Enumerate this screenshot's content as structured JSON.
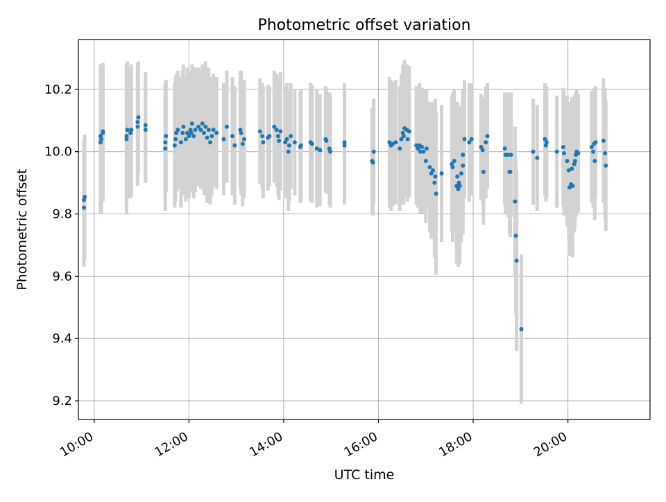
{
  "chart_data": {
    "type": "scatter",
    "title": "Photometric offset variation",
    "xlabel": "UTC time",
    "ylabel": "Photometric offset",
    "x_ticks": [
      "10:00",
      "12:00",
      "14:00",
      "16:00",
      "18:00",
      "20:00"
    ],
    "y_ticks": [
      "9.2",
      "9.4",
      "9.6",
      "9.8",
      "10.0",
      "10.2"
    ],
    "xlim": [
      "09:40",
      "21:44"
    ],
    "ylim": [
      9.14,
      10.36
    ],
    "grid": true,
    "colors": {
      "marker": "#1f77b4",
      "errorbar": "#d3d3d3",
      "grid": "#b0b0b0"
    },
    "points": [
      {
        "x": "09:47",
        "y": 9.82,
        "err": 0.19
      },
      {
        "x": "09:47",
        "y": 9.845,
        "err": 0.19
      },
      {
        "x": "09:48",
        "y": 9.855,
        "err": 0.2
      },
      {
        "x": "10:08",
        "y": 10.03,
        "err": 0.23
      },
      {
        "x": "10:08",
        "y": 10.05,
        "err": 0.23
      },
      {
        "x": "10:09",
        "y": 10.04,
        "err": 0.24
      },
      {
        "x": "10:11",
        "y": 10.06,
        "err": 0.22
      },
      {
        "x": "10:11",
        "y": 10.065,
        "err": 0.22
      },
      {
        "x": "10:41",
        "y": 10.04,
        "err": 0.24
      },
      {
        "x": "10:41",
        "y": 10.05,
        "err": 0.23
      },
      {
        "x": "10:42",
        "y": 10.07,
        "err": 0.22
      },
      {
        "x": "10:46",
        "y": 10.06,
        "err": 0.21
      },
      {
        "x": "10:47",
        "y": 10.07,
        "err": 0.21
      },
      {
        "x": "10:55",
        "y": 10.08,
        "err": 0.19
      },
      {
        "x": "10:55",
        "y": 10.095,
        "err": 0.19
      },
      {
        "x": "10:56",
        "y": 10.11,
        "err": 0.18
      },
      {
        "x": "11:05",
        "y": 10.07,
        "err": 0.17
      },
      {
        "x": "11:05",
        "y": 10.085,
        "err": 0.17
      },
      {
        "x": "11:30",
        "y": 10.01,
        "err": 0.2
      },
      {
        "x": "11:30",
        "y": 10.03,
        "err": 0.19
      },
      {
        "x": "11:31",
        "y": 10.05,
        "err": 0.18
      },
      {
        "x": "11:42",
        "y": 10.02,
        "err": 0.2
      },
      {
        "x": "11:43",
        "y": 10.04,
        "err": 0.2
      },
      {
        "x": "11:44",
        "y": 10.06,
        "err": 0.19
      },
      {
        "x": "11:46",
        "y": 10.07,
        "err": 0.19
      },
      {
        "x": "11:50",
        "y": 10.03,
        "err": 0.21
      },
      {
        "x": "11:52",
        "y": 10.06,
        "err": 0.2
      },
      {
        "x": "11:53",
        "y": 10.08,
        "err": 0.2
      },
      {
        "x": "11:56",
        "y": 10.04,
        "err": 0.2
      },
      {
        "x": "11:58",
        "y": 10.06,
        "err": 0.21
      },
      {
        "x": "12:00",
        "y": 10.05,
        "err": 0.2
      },
      {
        "x": "12:02",
        "y": 10.07,
        "err": 0.19
      },
      {
        "x": "12:03",
        "y": 10.06,
        "err": 0.19
      },
      {
        "x": "12:04",
        "y": 10.09,
        "err": 0.19
      },
      {
        "x": "12:06",
        "y": 10.05,
        "err": 0.2
      },
      {
        "x": "12:08",
        "y": 10.07,
        "err": 0.2
      },
      {
        "x": "12:12",
        "y": 10.08,
        "err": 0.19
      },
      {
        "x": "12:15",
        "y": 10.07,
        "err": 0.19
      },
      {
        "x": "12:17",
        "y": 10.09,
        "err": 0.19
      },
      {
        "x": "12:19",
        "y": 10.06,
        "err": 0.2
      },
      {
        "x": "12:21",
        "y": 10.08,
        "err": 0.21
      },
      {
        "x": "12:23",
        "y": 10.045,
        "err": 0.21
      },
      {
        "x": "12:25",
        "y": 10.07,
        "err": 0.2
      },
      {
        "x": "12:27",
        "y": 10.03,
        "err": 0.2
      },
      {
        "x": "12:29",
        "y": 10.05,
        "err": 0.19
      },
      {
        "x": "12:31",
        "y": 10.07,
        "err": 0.18
      },
      {
        "x": "12:35",
        "y": 10.06,
        "err": 0.18
      },
      {
        "x": "12:44",
        "y": 10.04,
        "err": 0.18
      },
      {
        "x": "12:48",
        "y": 10.08,
        "err": 0.18
      },
      {
        "x": "12:55",
        "y": 10.05,
        "err": 0.19
      },
      {
        "x": "12:58",
        "y": 10.02,
        "err": 0.19
      },
      {
        "x": "13:05",
        "y": 10.07,
        "err": 0.19
      },
      {
        "x": "13:06",
        "y": 10.06,
        "err": 0.2
      },
      {
        "x": "13:08",
        "y": 10.025,
        "err": 0.2
      },
      {
        "x": "13:10",
        "y": 10.04,
        "err": 0.19
      },
      {
        "x": "13:30",
        "y": 10.065,
        "err": 0.17
      },
      {
        "x": "13:33",
        "y": 10.05,
        "err": 0.17
      },
      {
        "x": "13:34",
        "y": 10.03,
        "err": 0.18
      },
      {
        "x": "13:40",
        "y": 10.045,
        "err": 0.17
      },
      {
        "x": "13:42",
        "y": 10.05,
        "err": 0.16
      },
      {
        "x": "13:48",
        "y": 10.08,
        "err": 0.18
      },
      {
        "x": "13:51",
        "y": 10.07,
        "err": 0.18
      },
      {
        "x": "13:53",
        "y": 10.05,
        "err": 0.19
      },
      {
        "x": "13:54",
        "y": 10.035,
        "err": 0.19
      },
      {
        "x": "13:56",
        "y": 10.065,
        "err": 0.19
      },
      {
        "x": "14:02",
        "y": 10.03,
        "err": 0.18
      },
      {
        "x": "14:04",
        "y": 10.04,
        "err": 0.18
      },
      {
        "x": "14:06",
        "y": 10.0,
        "err": 0.19
      },
      {
        "x": "14:07",
        "y": 10.02,
        "err": 0.18
      },
      {
        "x": "14:09",
        "y": 10.05,
        "err": 0.17
      },
      {
        "x": "14:14",
        "y": 10.03,
        "err": 0.17
      },
      {
        "x": "14:21",
        "y": 10.015,
        "err": 0.18
      },
      {
        "x": "14:22",
        "y": 10.02,
        "err": 0.18
      },
      {
        "x": "14:34",
        "y": 10.03,
        "err": 0.19
      },
      {
        "x": "14:36",
        "y": 10.025,
        "err": 0.19
      },
      {
        "x": "14:42",
        "y": 10.01,
        "err": 0.19
      },
      {
        "x": "14:46",
        "y": 10.005,
        "err": 0.18
      },
      {
        "x": "14:53",
        "y": 10.04,
        "err": 0.17
      },
      {
        "x": "14:54",
        "y": 10.035,
        "err": 0.17
      },
      {
        "x": "14:58",
        "y": 10.01,
        "err": 0.18
      },
      {
        "x": "14:59",
        "y": 10.0,
        "err": 0.18
      },
      {
        "x": "15:17",
        "y": 10.03,
        "err": 0.19
      },
      {
        "x": "15:17",
        "y": 10.02,
        "err": 0.19
      },
      {
        "x": "15:52",
        "y": 9.97,
        "err": 0.17
      },
      {
        "x": "15:53",
        "y": 9.965,
        "err": 0.17
      },
      {
        "x": "15:54",
        "y": 10.0,
        "err": 0.17
      },
      {
        "x": "16:14",
        "y": 10.03,
        "err": 0.21
      },
      {
        "x": "16:16",
        "y": 10.02,
        "err": 0.21
      },
      {
        "x": "16:18",
        "y": 10.025,
        "err": 0.2
      },
      {
        "x": "16:22",
        "y": 10.03,
        "err": 0.2
      },
      {
        "x": "16:27",
        "y": 10.01,
        "err": 0.2
      },
      {
        "x": "16:29",
        "y": 10.04,
        "err": 0.21
      },
      {
        "x": "16:31",
        "y": 10.06,
        "err": 0.22
      },
      {
        "x": "16:32",
        "y": 10.05,
        "err": 0.22
      },
      {
        "x": "16:33",
        "y": 10.075,
        "err": 0.22
      },
      {
        "x": "16:36",
        "y": 10.07,
        "err": 0.21
      },
      {
        "x": "16:37",
        "y": 10.04,
        "err": 0.2
      },
      {
        "x": "16:39",
        "y": 10.065,
        "err": 0.21
      },
      {
        "x": "16:48",
        "y": 10.02,
        "err": 0.19
      },
      {
        "x": "16:50",
        "y": 10.01,
        "err": 0.19
      },
      {
        "x": "16:52",
        "y": 10.02,
        "err": 0.2
      },
      {
        "x": "16:53",
        "y": 10.0,
        "err": 0.2
      },
      {
        "x": "16:55",
        "y": 10.015,
        "err": 0.19
      },
      {
        "x": "16:57",
        "y": 10.0,
        "err": 0.2
      },
      {
        "x": "17:00",
        "y": 9.97,
        "err": 0.2
      },
      {
        "x": "17:01",
        "y": 10.01,
        "err": 0.19
      },
      {
        "x": "17:05",
        "y": 9.95,
        "err": 0.21
      },
      {
        "x": "17:07",
        "y": 9.93,
        "err": 0.21
      },
      {
        "x": "17:09",
        "y": 9.94,
        "err": 0.22
      },
      {
        "x": "17:11",
        "y": 9.9,
        "err": 0.24
      },
      {
        "x": "17:12",
        "y": 9.92,
        "err": 0.25
      },
      {
        "x": "17:13",
        "y": 9.865,
        "err": 0.26
      },
      {
        "x": "17:20",
        "y": 9.93,
        "err": 0.22
      },
      {
        "x": "17:33",
        "y": 9.96,
        "err": 0.22
      },
      {
        "x": "17:34",
        "y": 9.95,
        "err": 0.24
      },
      {
        "x": "17:36",
        "y": 9.97,
        "err": 0.23
      },
      {
        "x": "17:39",
        "y": 9.89,
        "err": 0.25
      },
      {
        "x": "17:40",
        "y": 9.92,
        "err": 0.24
      },
      {
        "x": "17:41",
        "y": 9.88,
        "err": 0.25
      },
      {
        "x": "17:42",
        "y": 9.9,
        "err": 0.24
      },
      {
        "x": "17:43",
        "y": 9.89,
        "err": 0.25
      },
      {
        "x": "17:45",
        "y": 9.93,
        "err": 0.22
      },
      {
        "x": "17:47",
        "y": 9.955,
        "err": 0.22
      },
      {
        "x": "17:47",
        "y": 9.99,
        "err": 0.21
      },
      {
        "x": "17:49",
        "y": 10.04,
        "err": 0.19
      },
      {
        "x": "17:55",
        "y": 10.03,
        "err": 0.19
      },
      {
        "x": "17:58",
        "y": 10.04,
        "err": 0.18
      },
      {
        "x": "18:10",
        "y": 10.015,
        "err": 0.17
      },
      {
        "x": "18:12",
        "y": 10.005,
        "err": 0.17
      },
      {
        "x": "18:13",
        "y": 9.935,
        "err": 0.17
      },
      {
        "x": "18:16",
        "y": 10.03,
        "err": 0.18
      },
      {
        "x": "18:18",
        "y": 10.05,
        "err": 0.17
      },
      {
        "x": "18:40",
        "y": 10.01,
        "err": 0.18
      },
      {
        "x": "18:41",
        "y": 9.99,
        "err": 0.19
      },
      {
        "x": "18:44",
        "y": 9.99,
        "err": 0.2
      },
      {
        "x": "18:46",
        "y": 9.935,
        "err": 0.2
      },
      {
        "x": "18:47",
        "y": 9.935,
        "err": 0.21
      },
      {
        "x": "18:48",
        "y": 9.99,
        "err": 0.2
      },
      {
        "x": "18:53",
        "y": 9.84,
        "err": 0.24
      },
      {
        "x": "18:54",
        "y": 9.73,
        "err": 0.25
      },
      {
        "x": "18:55",
        "y": 9.65,
        "err": 0.29
      },
      {
        "x": "19:01",
        "y": 9.43,
        "err": 0.24
      },
      {
        "x": "19:16",
        "y": 10.0,
        "err": 0.17
      },
      {
        "x": "19:21",
        "y": 9.98,
        "err": 0.17
      },
      {
        "x": "19:31",
        "y": 10.04,
        "err": 0.18
      },
      {
        "x": "19:32",
        "y": 10.02,
        "err": 0.18
      },
      {
        "x": "19:33",
        "y": 10.03,
        "err": 0.18
      },
      {
        "x": "19:46",
        "y": 10.0,
        "err": 0.18
      },
      {
        "x": "19:54",
        "y": 10.015,
        "err": 0.19
      },
      {
        "x": "19:55",
        "y": 9.995,
        "err": 0.2
      },
      {
        "x": "19:59",
        "y": 9.97,
        "err": 0.21
      },
      {
        "x": "20:01",
        "y": 9.94,
        "err": 0.22
      },
      {
        "x": "20:02",
        "y": 9.885,
        "err": 0.22
      },
      {
        "x": "20:04",
        "y": 9.895,
        "err": 0.22
      },
      {
        "x": "20:05",
        "y": 9.945,
        "err": 0.23
      },
      {
        "x": "20:06",
        "y": 9.89,
        "err": 0.23
      },
      {
        "x": "20:08",
        "y": 9.96,
        "err": 0.22
      },
      {
        "x": "20:09",
        "y": 9.97,
        "err": 0.21
      },
      {
        "x": "20:10",
        "y": 9.99,
        "err": 0.2
      },
      {
        "x": "20:11",
        "y": 10.0,
        "err": 0.2
      },
      {
        "x": "20:13",
        "y": 9.995,
        "err": 0.19
      },
      {
        "x": "20:30",
        "y": 10.015,
        "err": 0.18
      },
      {
        "x": "20:32",
        "y": 10.0,
        "err": 0.18
      },
      {
        "x": "20:33",
        "y": 10.025,
        "err": 0.18
      },
      {
        "x": "20:34",
        "y": 9.97,
        "err": 0.19
      },
      {
        "x": "20:35",
        "y": 10.03,
        "err": 0.18
      },
      {
        "x": "20:45",
        "y": 10.035,
        "err": 0.2
      },
      {
        "x": "20:47",
        "y": 9.995,
        "err": 0.21
      },
      {
        "x": "20:48",
        "y": 9.955,
        "err": 0.21
      }
    ]
  }
}
